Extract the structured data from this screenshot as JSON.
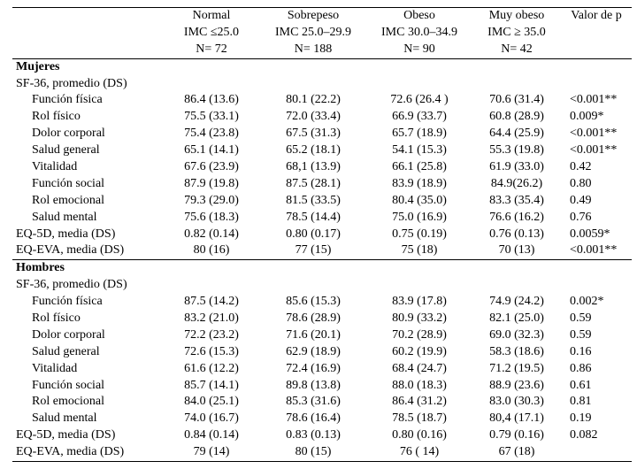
{
  "header": {
    "groups": [
      {
        "name": "Normal",
        "imc": "IMC ≤25.0",
        "n": "N= 72"
      },
      {
        "name": "Sobrepeso",
        "imc": "IMC 25.0–29.9",
        "n": "N= 188"
      },
      {
        "name": "Obeso",
        "imc": "IMC 30.0–34.9",
        "n": "N= 90"
      },
      {
        "name": "Muy obeso",
        "imc": "IMC ≥ 35.0",
        "n": "N= 42"
      }
    ],
    "p_label": "Valor de p"
  },
  "sections": {
    "mujeres": {
      "title": "Mujeres",
      "sf36_label": "SF-36, promedio (DS)",
      "rows": [
        {
          "label": "Función física",
          "g": [
            "86.4 (13.6)",
            "80.1 (22.2)",
            "72.6 (26.4 )",
            "70.6 (31.4)"
          ],
          "p": "<0.001**"
        },
        {
          "label": "Rol físico",
          "g": [
            "75.5 (33.1)",
            "72.0 (33.4)",
            "66.9 (33.7)",
            "60.8 (28.9)"
          ],
          "p": "0.009*"
        },
        {
          "label": "Dolor corporal",
          "g": [
            "75.4 (23.8)",
            "67.5 (31.3)",
            "65.7 (18.9)",
            "64.4 (25.9)"
          ],
          "p": "<0.001**"
        },
        {
          "label": "Salud general",
          "g": [
            "65.1 (14.1)",
            "65.2 (18.1)",
            "54.1 (15.3)",
            "55.3 (19.8)"
          ],
          "p": "<0.001**"
        },
        {
          "label": "Vitalidad",
          "g": [
            "67.6 (23.9)",
            "68,1 (13.9)",
            "66.1 (25.8)",
            "61.9 (33.0)"
          ],
          "p": "0.42"
        },
        {
          "label": "Función social",
          "g": [
            "87.9 (19.8)",
            "87.5 (28.1)",
            "83.9 (18.9)",
            "84.9(26.2)"
          ],
          "p": "0.80"
        },
        {
          "label": "Rol emocional",
          "g": [
            "79.3 (29.0)",
            "81.5 (33.5)",
            "80.4 (35.0)",
            "83.3 (35.4)"
          ],
          "p": "0.49"
        },
        {
          "label": "Salud mental",
          "g": [
            "75.6 (18.3)",
            "78.5 (14.4)",
            "75.0 (16.9)",
            "76.6 (16.2)"
          ],
          "p": "0.76"
        }
      ],
      "extra": [
        {
          "label": "EQ-5D, media (DS)",
          "g": [
            "0.82 (0.14)",
            "0.80 (0.17)",
            "0.75  (0.19)",
            "0.76 (0.13)"
          ],
          "p": "0.0059*"
        },
        {
          "label": "EQ-EVA, media (DS)",
          "g": [
            "80 (16)",
            "77 (15)",
            "75 (18)",
            "70 (13)"
          ],
          "p": "<0.001**"
        }
      ]
    },
    "hombres": {
      "title": "Hombres",
      "sf36_label": "SF-36, promedio (DS)",
      "rows": [
        {
          "label": "Función física",
          "g": [
            "87.5 (14.2)",
            "85.6 (15.3)",
            "83.9 (17.8)",
            "74.9 (24.2)"
          ],
          "p": "0.002*"
        },
        {
          "label": "Rol físico",
          "g": [
            "83.2 (21.0)",
            "78.6 (28.9)",
            "80.9 (33.2)",
            "82.1 (25.0)"
          ],
          "p": "0.59"
        },
        {
          "label": "Dolor corporal",
          "g": [
            "72.2 (23.2)",
            "71.6 (20.1)",
            "70.2 (28.9)",
            "69.0 (32.3)"
          ],
          "p": "0.59"
        },
        {
          "label": "Salud general",
          "g": [
            "72.6 (15.3)",
            "62.9 (18.9)",
            "60.2 (19.9)",
            "58.3 (18.6)"
          ],
          "p": "0.16"
        },
        {
          "label": "Vitalidad",
          "g": [
            "61.6 (12.2)",
            "72.4 (16.9)",
            "68.4 (24.7)",
            "71.2 (19.5)"
          ],
          "p": "0.86"
        },
        {
          "label": "Función social",
          "g": [
            "85.7 (14.1)",
            "89.8 (13.8)",
            "88.0 (18.3)",
            "88.9 (23.6)"
          ],
          "p": "0.61"
        },
        {
          "label": "Rol emocional",
          "g": [
            "84.0 (25.1)",
            "85.3 (31.6)",
            "86.4 (31.2)",
            "83.0 (30.3)"
          ],
          "p": "0.81"
        },
        {
          "label": "Salud mental",
          "g": [
            "74.0 (16.7)",
            "78.6 (16.4)",
            "78.5 (18.7)",
            "80,4 (17.1)"
          ],
          "p": "0.19"
        }
      ],
      "extra": [
        {
          "label": "EQ-5D, media (DS)",
          "g": [
            "0.84 (0.14)",
            "0.83 (0.13)",
            "0.80 (0.16)",
            "0.79 (0.16)"
          ],
          "p": "0.082"
        },
        {
          "label": "EQ-EVA, media (DS)",
          "g": [
            "79 (14)",
            "80 (15)",
            "76 ( 14)",
            "67 (18)"
          ],
          "p": ""
        }
      ]
    }
  }
}
